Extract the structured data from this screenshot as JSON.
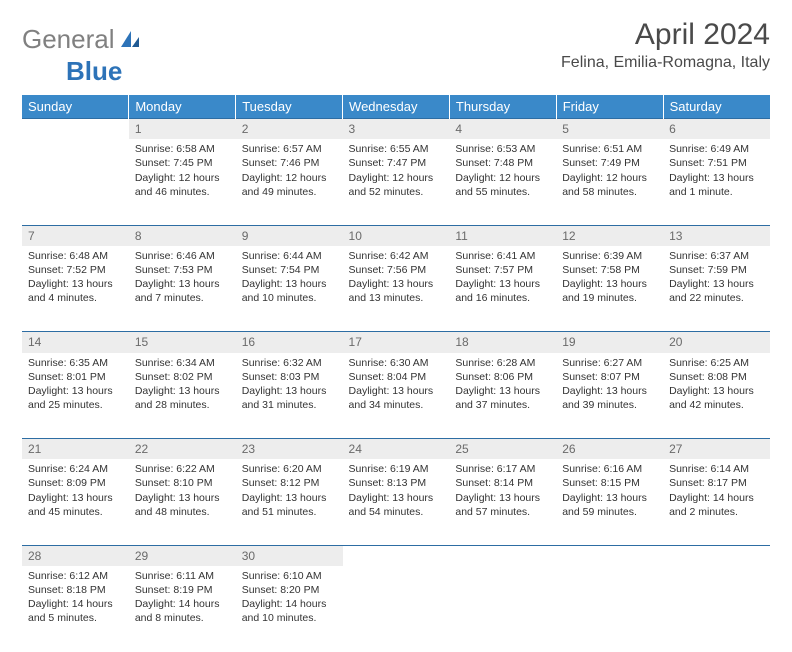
{
  "logo": {
    "text1": "General",
    "text2": "Blue"
  },
  "title": "April 2024",
  "location": "Felina, Emilia-Romagna, Italy",
  "colors": {
    "header_bg": "#3a89c9",
    "header_text": "#ffffff",
    "daynum_bg": "#ededed",
    "daynum_text": "#6a6a6a",
    "rule": "#2d6da3",
    "logo_gray": "#808080",
    "logo_blue": "#2d73b8"
  },
  "weekdays": [
    "Sunday",
    "Monday",
    "Tuesday",
    "Wednesday",
    "Thursday",
    "Friday",
    "Saturday"
  ],
  "weeks": [
    [
      null,
      {
        "n": "1",
        "sr": "6:58 AM",
        "ss": "7:45 PM",
        "dl": "12 hours and 46 minutes."
      },
      {
        "n": "2",
        "sr": "6:57 AM",
        "ss": "7:46 PM",
        "dl": "12 hours and 49 minutes."
      },
      {
        "n": "3",
        "sr": "6:55 AM",
        "ss": "7:47 PM",
        "dl": "12 hours and 52 minutes."
      },
      {
        "n": "4",
        "sr": "6:53 AM",
        "ss": "7:48 PM",
        "dl": "12 hours and 55 minutes."
      },
      {
        "n": "5",
        "sr": "6:51 AM",
        "ss": "7:49 PM",
        "dl": "12 hours and 58 minutes."
      },
      {
        "n": "6",
        "sr": "6:49 AM",
        "ss": "7:51 PM",
        "dl": "13 hours and 1 minute."
      }
    ],
    [
      {
        "n": "7",
        "sr": "6:48 AM",
        "ss": "7:52 PM",
        "dl": "13 hours and 4 minutes."
      },
      {
        "n": "8",
        "sr": "6:46 AM",
        "ss": "7:53 PM",
        "dl": "13 hours and 7 minutes."
      },
      {
        "n": "9",
        "sr": "6:44 AM",
        "ss": "7:54 PM",
        "dl": "13 hours and 10 minutes."
      },
      {
        "n": "10",
        "sr": "6:42 AM",
        "ss": "7:56 PM",
        "dl": "13 hours and 13 minutes."
      },
      {
        "n": "11",
        "sr": "6:41 AM",
        "ss": "7:57 PM",
        "dl": "13 hours and 16 minutes."
      },
      {
        "n": "12",
        "sr": "6:39 AM",
        "ss": "7:58 PM",
        "dl": "13 hours and 19 minutes."
      },
      {
        "n": "13",
        "sr": "6:37 AM",
        "ss": "7:59 PM",
        "dl": "13 hours and 22 minutes."
      }
    ],
    [
      {
        "n": "14",
        "sr": "6:35 AM",
        "ss": "8:01 PM",
        "dl": "13 hours and 25 minutes."
      },
      {
        "n": "15",
        "sr": "6:34 AM",
        "ss": "8:02 PM",
        "dl": "13 hours and 28 minutes."
      },
      {
        "n": "16",
        "sr": "6:32 AM",
        "ss": "8:03 PM",
        "dl": "13 hours and 31 minutes."
      },
      {
        "n": "17",
        "sr": "6:30 AM",
        "ss": "8:04 PM",
        "dl": "13 hours and 34 minutes."
      },
      {
        "n": "18",
        "sr": "6:28 AM",
        "ss": "8:06 PM",
        "dl": "13 hours and 37 minutes."
      },
      {
        "n": "19",
        "sr": "6:27 AM",
        "ss": "8:07 PM",
        "dl": "13 hours and 39 minutes."
      },
      {
        "n": "20",
        "sr": "6:25 AM",
        "ss": "8:08 PM",
        "dl": "13 hours and 42 minutes."
      }
    ],
    [
      {
        "n": "21",
        "sr": "6:24 AM",
        "ss": "8:09 PM",
        "dl": "13 hours and 45 minutes."
      },
      {
        "n": "22",
        "sr": "6:22 AM",
        "ss": "8:10 PM",
        "dl": "13 hours and 48 minutes."
      },
      {
        "n": "23",
        "sr": "6:20 AM",
        "ss": "8:12 PM",
        "dl": "13 hours and 51 minutes."
      },
      {
        "n": "24",
        "sr": "6:19 AM",
        "ss": "8:13 PM",
        "dl": "13 hours and 54 minutes."
      },
      {
        "n": "25",
        "sr": "6:17 AM",
        "ss": "8:14 PM",
        "dl": "13 hours and 57 minutes."
      },
      {
        "n": "26",
        "sr": "6:16 AM",
        "ss": "8:15 PM",
        "dl": "13 hours and 59 minutes."
      },
      {
        "n": "27",
        "sr": "6:14 AM",
        "ss": "8:17 PM",
        "dl": "14 hours and 2 minutes."
      }
    ],
    [
      {
        "n": "28",
        "sr": "6:12 AM",
        "ss": "8:18 PM",
        "dl": "14 hours and 5 minutes."
      },
      {
        "n": "29",
        "sr": "6:11 AM",
        "ss": "8:19 PM",
        "dl": "14 hours and 8 minutes."
      },
      {
        "n": "30",
        "sr": "6:10 AM",
        "ss": "8:20 PM",
        "dl": "14 hours and 10 minutes."
      },
      null,
      null,
      null,
      null
    ]
  ],
  "labels": {
    "sunrise": "Sunrise: ",
    "sunset": "Sunset: ",
    "daylight": "Daylight: "
  }
}
